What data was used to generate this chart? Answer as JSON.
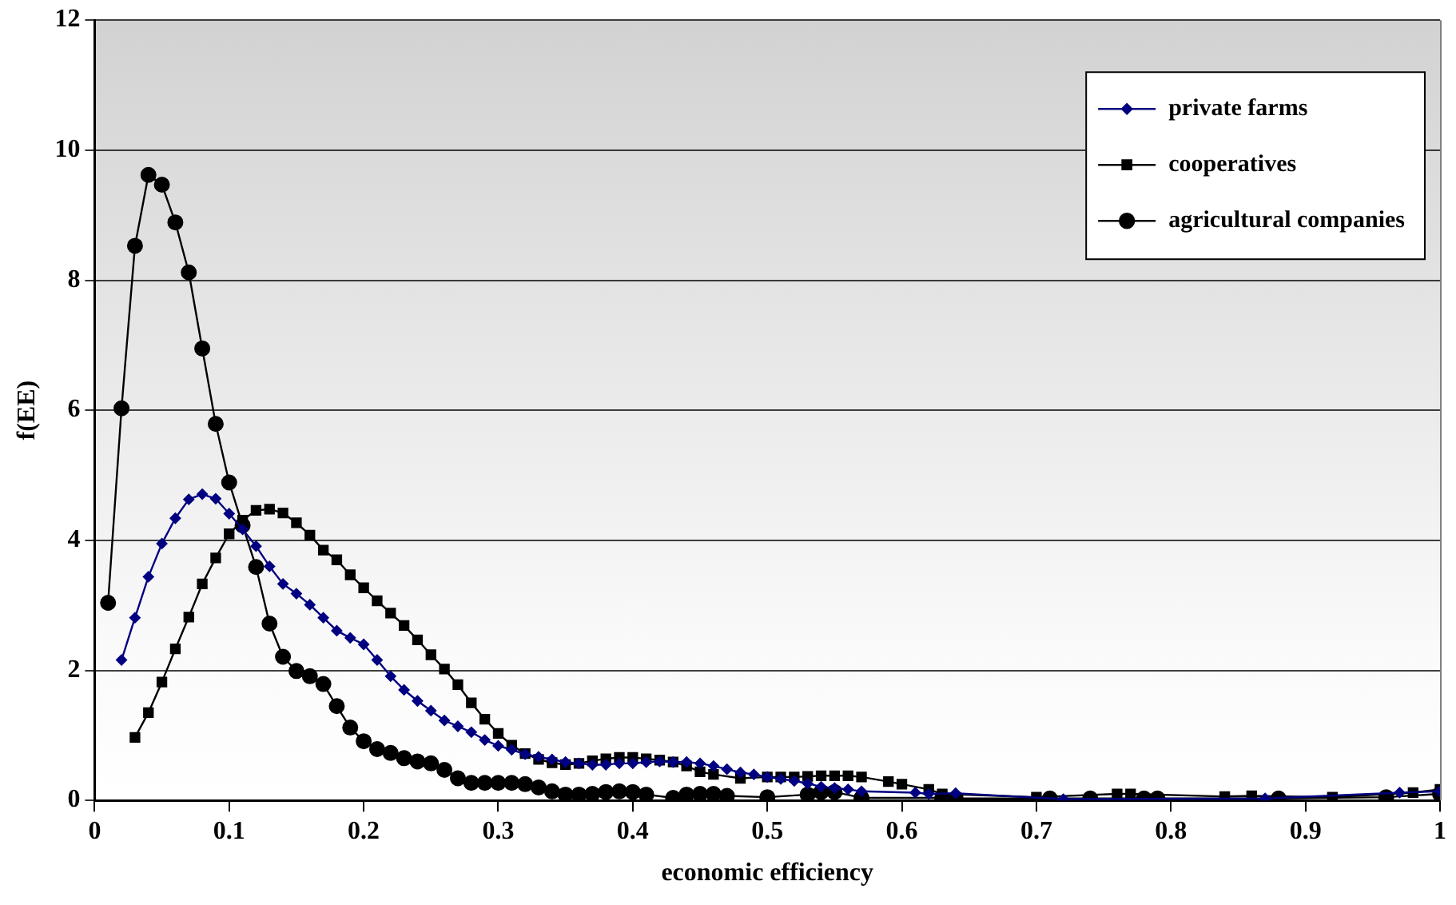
{
  "chart_data": {
    "type": "line",
    "xlabel": "economic efficiency",
    "ylabel": "f(EE)",
    "xlim": [
      0,
      1
    ],
    "xticks": [
      0,
      0.1,
      0.2,
      0.3,
      0.4,
      0.5,
      0.6,
      0.7,
      0.8,
      0.9,
      1
    ],
    "ylim": [
      0,
      12
    ],
    "yticks": [
      0,
      2,
      4,
      6,
      8,
      10,
      12
    ],
    "grid": "y",
    "legend": "top right",
    "line_style": "solid",
    "series": [
      {
        "name": "private farms",
        "color": "#000080",
        "marker": "diamond",
        "x": [
          0.02,
          0.03,
          0.04,
          0.05,
          0.06,
          0.07,
          0.08,
          0.09,
          0.1,
          0.11,
          0.12,
          0.13,
          0.14,
          0.15,
          0.16,
          0.17,
          0.18,
          0.19,
          0.2,
          0.21,
          0.22,
          0.23,
          0.24,
          0.25,
          0.26,
          0.27,
          0.28,
          0.29,
          0.3,
          0.31,
          0.32,
          0.33,
          0.34,
          0.35,
          0.36,
          0.37,
          0.38,
          0.39,
          0.4,
          0.41,
          0.42,
          0.43,
          0.44,
          0.45,
          0.46,
          0.47,
          0.48,
          0.49,
          0.5,
          0.51,
          0.52,
          0.53,
          0.54,
          0.55,
          0.56,
          0.57,
          0.61,
          0.62,
          0.64,
          0.72,
          0.87,
          0.97,
          1
        ],
        "values": [
          2.16,
          2.81,
          3.44,
          3.95,
          4.34,
          4.63,
          4.71,
          4.64,
          4.41,
          4.17,
          3.91,
          3.6,
          3.33,
          3.18,
          3.01,
          2.81,
          2.61,
          2.5,
          2.4,
          2.16,
          1.91,
          1.7,
          1.53,
          1.38,
          1.23,
          1.14,
          1.05,
          0.93,
          0.84,
          0.78,
          0.71,
          0.67,
          0.63,
          0.59,
          0.57,
          0.55,
          0.55,
          0.57,
          0.57,
          0.59,
          0.6,
          0.59,
          0.59,
          0.57,
          0.53,
          0.48,
          0.43,
          0.4,
          0.36,
          0.33,
          0.3,
          0.26,
          0.21,
          0.19,
          0.17,
          0.14,
          0.12,
          0.1,
          0.11,
          0.02,
          0.03,
          0.12,
          0.14
        ]
      },
      {
        "name": "cooperatives",
        "color": "#000000",
        "marker": "square",
        "x": [
          0.03,
          0.04,
          0.05,
          0.06,
          0.07,
          0.08,
          0.09,
          0.1,
          0.11,
          0.12,
          0.13,
          0.14,
          0.15,
          0.16,
          0.17,
          0.18,
          0.19,
          0.2,
          0.21,
          0.22,
          0.23,
          0.24,
          0.25,
          0.26,
          0.27,
          0.28,
          0.29,
          0.3,
          0.31,
          0.32,
          0.33,
          0.34,
          0.35,
          0.36,
          0.37,
          0.38,
          0.39,
          0.4,
          0.41,
          0.42,
          0.43,
          0.44,
          0.45,
          0.46,
          0.48,
          0.5,
          0.51,
          0.52,
          0.53,
          0.54,
          0.55,
          0.56,
          0.57,
          0.59,
          0.6,
          0.62,
          0.63,
          0.7,
          0.76,
          0.77,
          0.84,
          0.86,
          0.92,
          0.98,
          1
        ],
        "values": [
          0.97,
          1.35,
          1.82,
          2.33,
          2.82,
          3.33,
          3.73,
          4.1,
          4.31,
          4.46,
          4.48,
          4.42,
          4.27,
          4.08,
          3.85,
          3.7,
          3.47,
          3.27,
          3.07,
          2.88,
          2.69,
          2.47,
          2.24,
          2.02,
          1.78,
          1.5,
          1.25,
          1.03,
          0.85,
          0.72,
          0.63,
          0.58,
          0.55,
          0.57,
          0.61,
          0.64,
          0.66,
          0.66,
          0.64,
          0.62,
          0.59,
          0.53,
          0.44,
          0.4,
          0.34,
          0.36,
          0.36,
          0.36,
          0.37,
          0.38,
          0.38,
          0.38,
          0.36,
          0.29,
          0.25,
          0.17,
          0.1,
          0.05,
          0.1,
          0.1,
          0.06,
          0.07,
          0.05,
          0.12,
          0.17
        ]
      },
      {
        "name": "agricultural companies",
        "color": "#000000",
        "marker": "circle",
        "x": [
          0.01,
          0.02,
          0.03,
          0.04,
          0.05,
          0.06,
          0.07,
          0.08,
          0.09,
          0.1,
          0.11,
          0.12,
          0.13,
          0.14,
          0.15,
          0.16,
          0.17,
          0.18,
          0.19,
          0.2,
          0.21,
          0.22,
          0.23,
          0.24,
          0.25,
          0.26,
          0.27,
          0.28,
          0.29,
          0.3,
          0.31,
          0.32,
          0.33,
          0.34,
          0.35,
          0.36,
          0.37,
          0.38,
          0.39,
          0.4,
          0.41,
          0.43,
          0.44,
          0.45,
          0.46,
          0.47,
          0.5,
          0.53,
          0.54,
          0.55,
          0.57,
          0.63,
          0.64,
          0.71,
          0.74,
          0.78,
          0.79,
          0.88,
          0.96,
          1
        ],
        "values": [
          3.04,
          6.03,
          8.53,
          9.62,
          9.47,
          8.89,
          8.12,
          6.95,
          5.79,
          4.89,
          4.23,
          3.59,
          2.72,
          2.21,
          1.99,
          1.91,
          1.79,
          1.45,
          1.12,
          0.91,
          0.79,
          0.73,
          0.65,
          0.6,
          0.57,
          0.47,
          0.34,
          0.27,
          0.27,
          0.27,
          0.27,
          0.25,
          0.2,
          0.14,
          0.09,
          0.09,
          0.1,
          0.13,
          0.14,
          0.13,
          0.09,
          0.04,
          0.09,
          0.1,
          0.1,
          0.07,
          0.05,
          0.09,
          0.13,
          0.13,
          0.04,
          0.04,
          0.03,
          0.03,
          0.03,
          0.03,
          0.03,
          0.03,
          0.05,
          0.1
        ]
      }
    ]
  }
}
